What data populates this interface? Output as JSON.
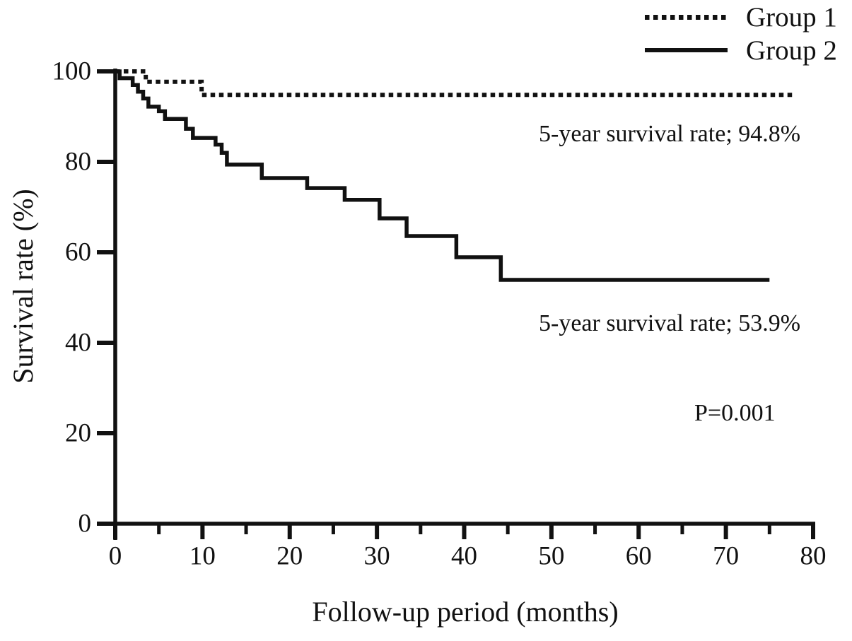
{
  "figure": {
    "background_color": "#ffffff",
    "ink_color": "#111111"
  },
  "legend": {
    "position": "top-right",
    "items": [
      {
        "label": "Group 1",
        "style": "dotted"
      },
      {
        "label": "Group 2",
        "style": "solid"
      }
    ]
  },
  "annotations": [
    {
      "id": "group1-five-year-rate",
      "text": "5-year survival rate; 94.8%"
    },
    {
      "id": "group2-five-year-rate",
      "text": "5-year survival rate; 53.9%"
    },
    {
      "id": "p-value",
      "text": "P=0.001"
    }
  ],
  "chart_data": {
    "type": "line",
    "subtype": "kaplan-meier-step-curve",
    "title": "",
    "xlabel": "Follow-up period (months)",
    "ylabel": "Survival rate (%)",
    "xlim": [
      0,
      80
    ],
    "ylim": [
      0,
      100
    ],
    "x_major_ticks": [
      0,
      10,
      20,
      30,
      40,
      50,
      60,
      70,
      80
    ],
    "x_minor_ticks": [
      5,
      15,
      25,
      35,
      45,
      55,
      65,
      75
    ],
    "y_ticks": [
      0,
      20,
      40,
      60,
      80,
      100
    ],
    "grid": false,
    "legend_position": "top-right",
    "p_value": "P=0.001",
    "series": [
      {
        "name": "Group 1",
        "style": "dotted",
        "color": "#111111",
        "five_year_survival_rate_pct": 94.8,
        "end_x": 77.6,
        "steps": [
          [
            0,
            100
          ],
          [
            3.5,
            97.7
          ],
          [
            9.9,
            94.8
          ]
        ]
      },
      {
        "name": "Group 2",
        "style": "solid",
        "color": "#111111",
        "five_year_survival_rate_pct": 53.9,
        "end_x": 75.0,
        "steps": [
          [
            0,
            100
          ],
          [
            0.5,
            98.5
          ],
          [
            2.0,
            97.0
          ],
          [
            2.6,
            95.5
          ],
          [
            3.2,
            94.0
          ],
          [
            3.8,
            92.2
          ],
          [
            5.0,
            91.2
          ],
          [
            5.7,
            89.5
          ],
          [
            8.1,
            87.3
          ],
          [
            8.9,
            85.3
          ],
          [
            11.5,
            83.8
          ],
          [
            12.2,
            82.0
          ],
          [
            12.8,
            79.4
          ],
          [
            16.8,
            76.4
          ],
          [
            22.0,
            74.2
          ],
          [
            26.3,
            71.6
          ],
          [
            30.3,
            67.5
          ],
          [
            33.4,
            63.6
          ],
          [
            39.1,
            58.9
          ],
          [
            44.2,
            53.9
          ]
        ]
      }
    ]
  }
}
